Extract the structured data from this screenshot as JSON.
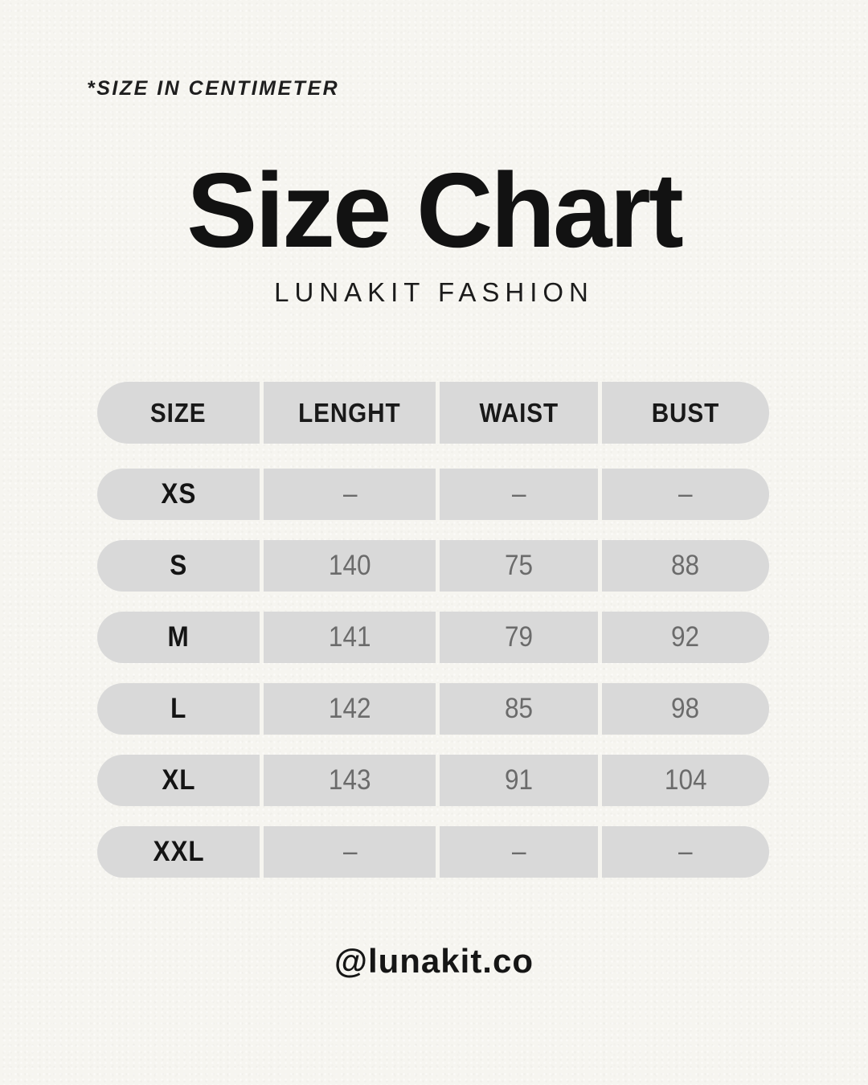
{
  "header": {
    "note": "*SIZE IN CENTIMETER",
    "title": "Size Chart",
    "subtitle": "LUNAKIT FASHION"
  },
  "chart_data": {
    "type": "table",
    "title": "Size Chart",
    "units": "centimeter",
    "columns": [
      "SIZE",
      "LENGHT",
      "WAIST",
      "BUST"
    ],
    "rows": [
      [
        "XS",
        "–",
        "–",
        "–"
      ],
      [
        "S",
        "140",
        "75",
        "88"
      ],
      [
        "M",
        "141",
        "79",
        "92"
      ],
      [
        "L",
        "142",
        "85",
        "98"
      ],
      [
        "XL",
        "143",
        "91",
        "104"
      ],
      [
        "XXL",
        "–",
        "–",
        "–"
      ]
    ]
  },
  "footer": {
    "handle": "@lunakit.co"
  },
  "colors": {
    "background": "#f6f5f0",
    "row_fill": "#d9d9d9",
    "text_primary": "#141414",
    "text_muted": "#6b6b6b"
  }
}
